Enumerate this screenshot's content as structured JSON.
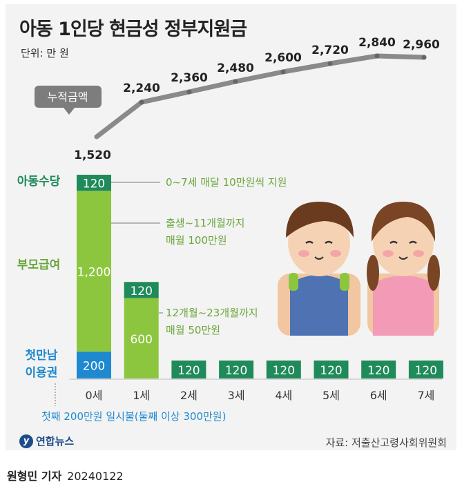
{
  "title": "아동 1인당 현금성 정부지원금",
  "unit": "단위: 만 원",
  "accum_label": "누적금액",
  "source": "자료: 저출산고령사회위원회",
  "logo": "연합뉴스",
  "reporter": "원형민 기자",
  "date": "20240122",
  "colors": {
    "child_allowance": "#1f8a5a",
    "parent_benefit": "#8cc63f",
    "first_meet": "#1e88d0",
    "line": "#8a8a8a",
    "accent_green_text": "#6aa63a",
    "blue_text": "#1e88d0"
  },
  "chart_data": {
    "type": "bar",
    "categories": [
      "0세",
      "1세",
      "2세",
      "3세",
      "4세",
      "5세",
      "6세",
      "7세"
    ],
    "series": [
      {
        "name": "첫만남 이용권",
        "values": [
          200,
          0,
          0,
          0,
          0,
          0,
          0,
          0
        ]
      },
      {
        "name": "부모급여",
        "values": [
          1200,
          600,
          0,
          0,
          0,
          0,
          0,
          0
        ]
      },
      {
        "name": "아동수당",
        "values": [
          120,
          120,
          120,
          120,
          120,
          120,
          120,
          120
        ]
      }
    ],
    "cumulative": {
      "name": "누적금액",
      "values": [
        1520,
        2240,
        2360,
        2480,
        2600,
        2720,
        2840,
        2960
      ],
      "labels": [
        "1,520",
        "2,240",
        "2,360",
        "2,480",
        "2,600",
        "2,720",
        "2,840",
        "2,960"
      ]
    },
    "value_labels": {
      "child_allowance": "120",
      "parent_0": "1,200",
      "parent_1": "600",
      "first_meet": "200"
    },
    "annotations": {
      "child_allowance": "0~7세 매달 10만원씩 지원",
      "parent_0_line1": "출생~11개월까지",
      "parent_0_line2": "매월 100만원",
      "parent_1_line1": "12개월~23개월까지",
      "parent_1_line2": "매월 50만원",
      "first_meet": "첫째 200만원 일시불(둘째 이상 300만원)"
    },
    "row_labels": {
      "child_allowance": "아동수당",
      "parent_benefit": "부모급여",
      "first_meet_1": "첫만남",
      "first_meet_2": "이용권"
    }
  }
}
